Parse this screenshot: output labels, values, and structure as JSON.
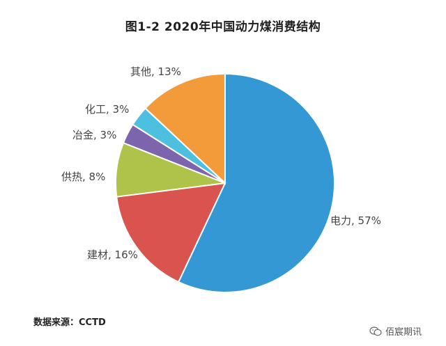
{
  "chart_data": {
    "type": "pie",
    "title": "图1-2  2020年中国动力煤消费结构",
    "categories": [
      "电力",
      "建材",
      "供热",
      "冶金",
      "化工",
      "其他"
    ],
    "values": [
      57,
      16,
      8,
      3,
      3,
      13
    ],
    "labels": [
      "电力, 57%",
      "建材, 16%",
      "供热, 8%",
      "冶金, 3%",
      "化工, 3%",
      "其他, 13%"
    ],
    "colors": [
      "#3398d3",
      "#d9534f",
      "#afc24a",
      "#7d65ad",
      "#4cc0de",
      "#f39a3b"
    ],
    "start": "12 o'clock",
    "direction": "clockwise"
  },
  "source": "数据来源：CCTD",
  "watermark": {
    "text": "佰宸期讯",
    "icon": "wechat-icon"
  }
}
